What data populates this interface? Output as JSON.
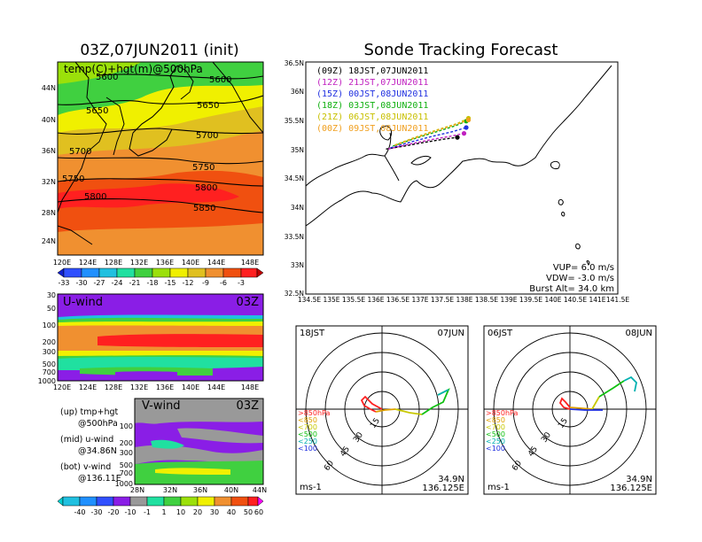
{
  "left_title": "03Z,07JUN2011 (init)",
  "right_title": "Sonde Tracking Forecast",
  "colors": {
    "red": "#ff2020",
    "orange": "#f08030",
    "green": "#10c010",
    "purple": "#8a1ee6",
    "gray": "#999999"
  },
  "chart_data": [
    {
      "type": "heatmap",
      "panel": "temp-hgt-map",
      "title": "temp(C)+hgt(m)@500hPa",
      "x_ticks": [
        "120E",
        "124E",
        "128E",
        "132E",
        "136E",
        "140E",
        "144E",
        "148E"
      ],
      "y_ticks": [
        "24N",
        "28N",
        "32N",
        "36N",
        "40N",
        "44N"
      ],
      "contour_labels": [
        "5600",
        "5600",
        "5650",
        "5650",
        "5700",
        "5700",
        "5750",
        "5750",
        "5800",
        "5800",
        "5850"
      ],
      "colorbar_ticks": [
        "-33",
        "-30",
        "-27",
        "-24",
        "-21",
        "-18",
        "-15",
        "-12",
        "-9",
        "-6",
        "-3"
      ]
    },
    {
      "type": "heatmap",
      "panel": "u-wind",
      "title": "U-wind",
      "time_label": "03Z",
      "x_ticks": [
        "120E",
        "124E",
        "128E",
        "132E",
        "136E",
        "140E",
        "144E",
        "148E"
      ],
      "y_ticks": [
        "30",
        "50",
        "100",
        "200",
        "300",
        "500",
        "700",
        "1000"
      ]
    },
    {
      "type": "heatmap",
      "panel": "v-wind",
      "title": "V-wind",
      "time_label": "03Z",
      "x_ticks": [
        "28N",
        "32N",
        "36N",
        "40N",
        "44N"
      ],
      "y_ticks": [
        "100",
        "200",
        "300",
        "500",
        "700",
        "1000"
      ],
      "colorbar_ticks": [
        "-40",
        "-30",
        "-20",
        "-10",
        "-1",
        "1",
        "10",
        "20",
        "30",
        "40",
        "50",
        "60"
      ]
    },
    {
      "type": "line",
      "panel": "sonde-tracking-map",
      "x_ticks": [
        "134.5E",
        "135E",
        "135.5E",
        "136E",
        "136.5E",
        "137E",
        "137.5E",
        "138E",
        "138.5E",
        "139E",
        "139.5E",
        "140E",
        "140.5E",
        "141E",
        "141.5E"
      ],
      "y_ticks": [
        "32.5N",
        "33N",
        "33.5N",
        "34N",
        "34.5N",
        "35N",
        "35.5N",
        "36N",
        "36.5N"
      ],
      "xlim": [
        134.5,
        141.5
      ],
      "ylim": [
        32.5,
        36.5
      ],
      "series": [
        {
          "name": "(09Z) 18JST,07JUN2011",
          "color": "#000000",
          "x": [
            136.3,
            136.7,
            137.2,
            137.6,
            137.9
          ],
          "y": [
            35.0,
            35.05,
            35.12,
            35.17,
            35.2
          ]
        },
        {
          "name": "(12Z) 21JST,07JUN2011",
          "color": "#c020c0",
          "x": [
            136.35,
            136.8,
            137.3,
            137.75,
            138.05
          ],
          "y": [
            35.0,
            35.08,
            35.16,
            35.22,
            35.27
          ]
        },
        {
          "name": "(15Z) 00JST,08JUN2011",
          "color": "#2030e0",
          "x": [
            136.4,
            136.85,
            137.35,
            137.8,
            138.1
          ],
          "y": [
            35.02,
            35.12,
            35.22,
            35.3,
            35.37
          ]
        },
        {
          "name": "(18Z) 03JST,08JUN2011",
          "color": "#10b010",
          "x": [
            136.45,
            136.9,
            137.4,
            137.85,
            138.1
          ],
          "y": [
            35.05,
            35.17,
            35.29,
            35.4,
            35.48
          ]
        },
        {
          "name": "(21Z) 06JST,08JUN2011",
          "color": "#c8c000",
          "x": [
            136.5,
            136.95,
            137.45,
            137.9,
            138.15
          ],
          "y": [
            35.07,
            35.2,
            35.33,
            35.44,
            35.53
          ]
        },
        {
          "name": "(00Z) 09JST,08JUN2011",
          "color": "#f0a020",
          "x": [
            136.5,
            136.95,
            137.45,
            137.9,
            138.15
          ],
          "y": [
            35.06,
            35.19,
            35.32,
            35.43,
            35.5
          ]
        }
      ],
      "info": [
        "VUP= 6.0 m/s",
        "VDW= -3.0 m/s",
        "Burst Alt= 34.0 km"
      ]
    },
    {
      "type": "line",
      "panel": "hodograph-18jst",
      "left_label": "18JST",
      "right_label": "07JUN",
      "rings": [
        "15",
        "30",
        "45",
        "60"
      ],
      "legend": [
        ">850hPa",
        "<850",
        "<700",
        "<500",
        "<250",
        "<100"
      ],
      "legend_colors": [
        "#ff2020",
        "#e0a000",
        "#c8c800",
        "#10c010",
        "#00b0b0",
        "#2030e0"
      ],
      "unit": "ms-1",
      "lat": "34.9N",
      "lon": "136.125E"
    },
    {
      "type": "line",
      "panel": "hodograph-06jst",
      "left_label": "06JST",
      "right_label": "08JUN",
      "rings": [
        "15",
        "30",
        "45",
        "60"
      ],
      "legend": [
        ">850hPa",
        "<850",
        "<700",
        "<500",
        "<250",
        "<100"
      ],
      "legend_colors": [
        "#ff2020",
        "#e0a000",
        "#c8c800",
        "#10c010",
        "#00b0b0",
        "#2030e0"
      ],
      "unit": "ms-1",
      "lat": "34.9N",
      "lon": "136.125E"
    }
  ],
  "notes": {
    "up_a": "(up)  tmp+hgt",
    "up_b": "@500hPa",
    "mid_a": "(mid)  u-wind",
    "mid_b": "@34.86N",
    "bot_a": "(bot)  v-wind",
    "bot_b": "@136.11E"
  }
}
